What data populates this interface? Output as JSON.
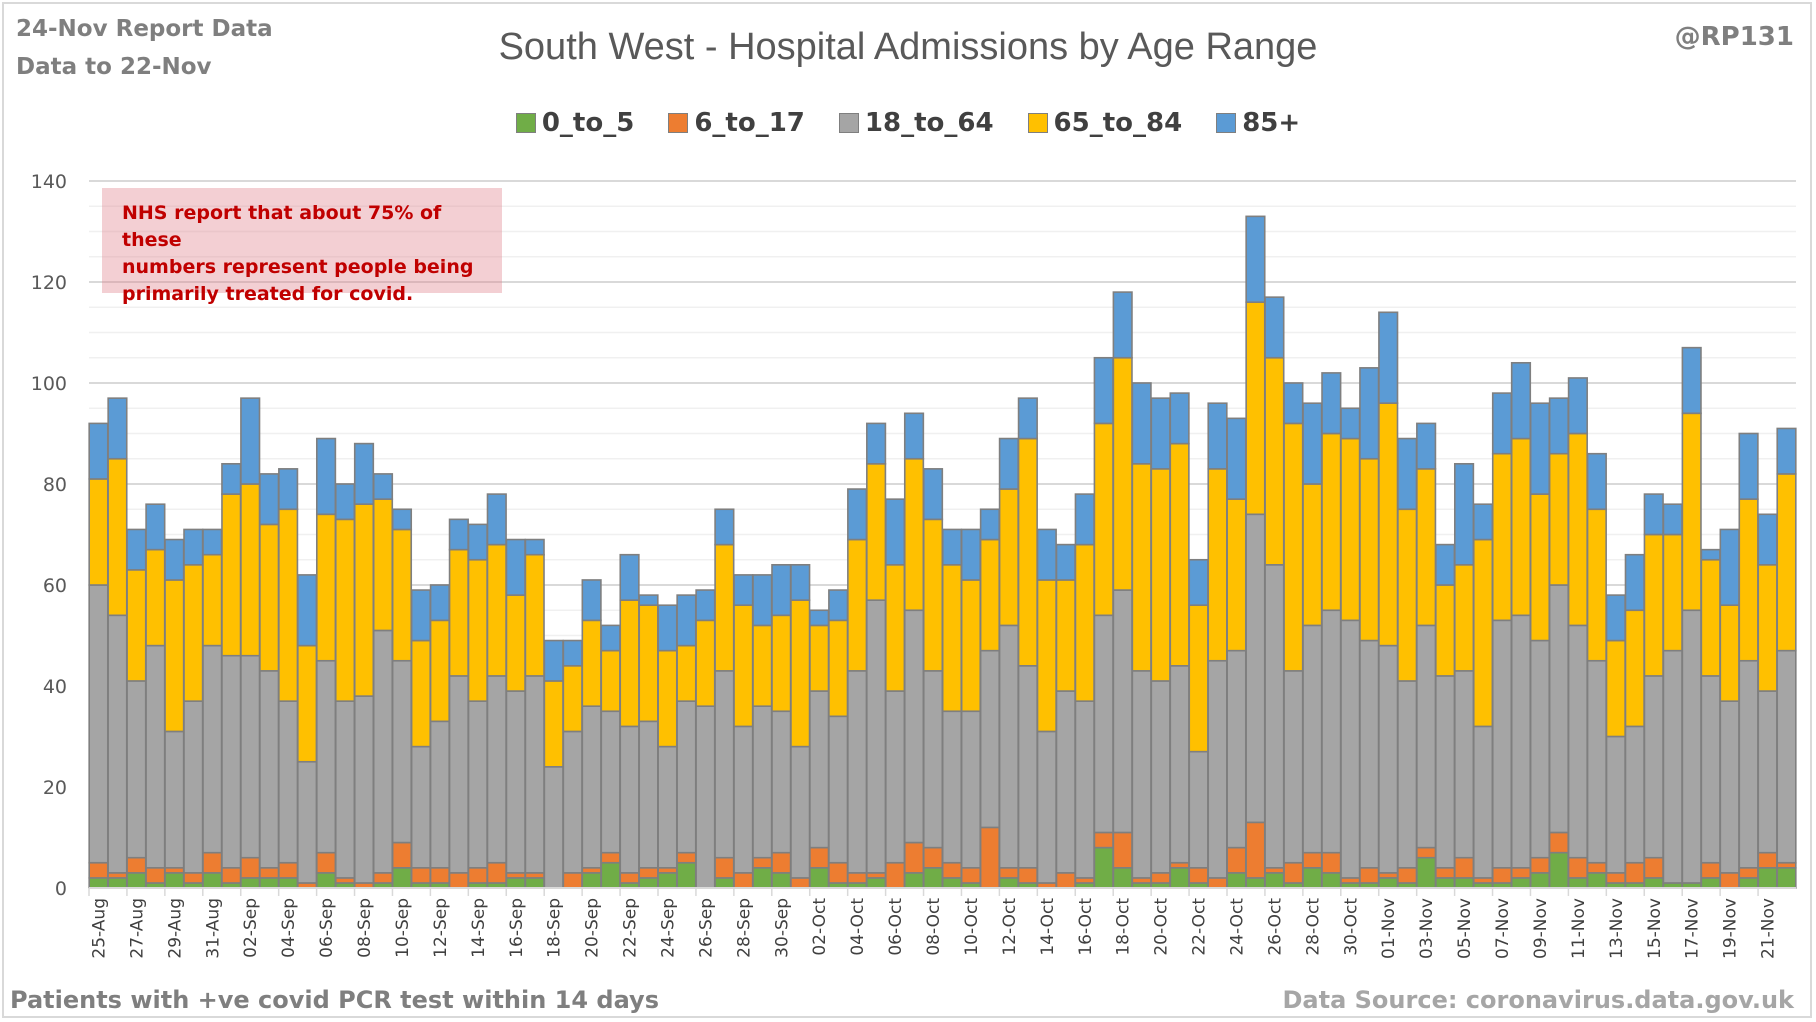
{
  "header": {
    "report_line1": "24-Nov Report Data",
    "report_line2": "Data to 22-Nov",
    "author": "@RP131"
  },
  "footer": {
    "left": "Patients with  +ve covid PCR test within 14 days",
    "right": "Data Source: coronavirus.data.gov.uk"
  },
  "annotation": {
    "line1": "NHS report that about 75% of these",
    "line2": "numbers represent people being",
    "line3": "primarily treated for covid."
  },
  "chart_data": {
    "type": "bar",
    "stacked": true,
    "title": "South West - Hospital Admissions by Age Range",
    "xlabel": "",
    "ylabel": "",
    "ylim": [
      0,
      140
    ],
    "yticks": [
      0,
      20,
      40,
      60,
      80,
      100,
      120,
      140
    ],
    "grid": true,
    "legend_position": "top",
    "x_tick_labels": [
      "25-Aug",
      "27-Aug",
      "29-Aug",
      "31-Aug",
      "02-Sep",
      "04-Sep",
      "06-Sep",
      "08-Sep",
      "10-Sep",
      "12-Sep",
      "14-Sep",
      "16-Sep",
      "18-Sep",
      "20-Sep",
      "22-Sep",
      "24-Sep",
      "26-Sep",
      "28-Sep",
      "30-Sep",
      "02-Oct",
      "04-Oct",
      "06-Oct",
      "08-Oct",
      "10-Oct",
      "12-Oct",
      "14-Oct",
      "16-Oct",
      "18-Oct",
      "20-Oct",
      "22-Oct",
      "24-Oct",
      "26-Oct",
      "28-Oct",
      "30-Oct",
      "01-Nov",
      "03-Nov",
      "05-Nov",
      "07-Nov",
      "09-Nov",
      "11-Nov",
      "13-Nov",
      "15-Nov",
      "17-Nov",
      "19-Nov",
      "21-Nov"
    ],
    "categories": [
      "25-Aug",
      "26-Aug",
      "27-Aug",
      "28-Aug",
      "29-Aug",
      "30-Aug",
      "31-Aug",
      "01-Sep",
      "02-Sep",
      "03-Sep",
      "04-Sep",
      "05-Sep",
      "06-Sep",
      "07-Sep",
      "08-Sep",
      "09-Sep",
      "10-Sep",
      "11-Sep",
      "12-Sep",
      "13-Sep",
      "14-Sep",
      "15-Sep",
      "16-Sep",
      "17-Sep",
      "18-Sep",
      "19-Sep",
      "20-Sep",
      "21-Sep",
      "22-Sep",
      "23-Sep",
      "24-Sep",
      "25-Sep",
      "26-Sep",
      "27-Sep",
      "28-Sep",
      "29-Sep",
      "30-Sep",
      "01-Oct",
      "02-Oct",
      "03-Oct",
      "04-Oct",
      "05-Oct",
      "06-Oct",
      "07-Oct",
      "08-Oct",
      "09-Oct",
      "10-Oct",
      "11-Oct",
      "12-Oct",
      "13-Oct",
      "14-Oct",
      "15-Oct",
      "16-Oct",
      "17-Oct",
      "18-Oct",
      "19-Oct",
      "20-Oct",
      "21-Oct",
      "22-Oct",
      "23-Oct",
      "24-Oct",
      "25-Oct",
      "26-Oct",
      "27-Oct",
      "28-Oct",
      "29-Oct",
      "30-Oct",
      "31-Oct",
      "01-Nov",
      "02-Nov",
      "03-Nov",
      "04-Nov",
      "05-Nov",
      "06-Nov",
      "07-Nov",
      "08-Nov",
      "09-Nov",
      "10-Nov",
      "11-Nov",
      "12-Nov",
      "13-Nov",
      "14-Nov",
      "15-Nov",
      "16-Nov",
      "17-Nov",
      "18-Nov",
      "19-Nov",
      "20-Nov",
      "21-Nov",
      "22-Nov"
    ],
    "series": [
      {
        "name": "0_to_5",
        "color": "#70ad47",
        "values": [
          2,
          2,
          3,
          1,
          3,
          1,
          3,
          1,
          2,
          2,
          2,
          0,
          3,
          1,
          0,
          1,
          4,
          1,
          1,
          0,
          1,
          1,
          2,
          2,
          0,
          0,
          3,
          5,
          1,
          2,
          3,
          5,
          0,
          2,
          0,
          4,
          3,
          0,
          4,
          1,
          1,
          2,
          0,
          3,
          4,
          2,
          1,
          0,
          2,
          1,
          0,
          0,
          1,
          8,
          4,
          1,
          1,
          4,
          1,
          0,
          3,
          2,
          3,
          1,
          4,
          3,
          1,
          1,
          2,
          1,
          6,
          2,
          2,
          1,
          1,
          2,
          3,
          7,
          2,
          3,
          1,
          1,
          2,
          1,
          1,
          2,
          0,
          2,
          4,
          4
        ]
      },
      {
        "name": "6_to_17",
        "color": "#ed7d31",
        "values": [
          3,
          1,
          3,
          3,
          1,
          2,
          4,
          3,
          4,
          2,
          3,
          1,
          4,
          1,
          1,
          2,
          5,
          3,
          3,
          3,
          3,
          4,
          1,
          1,
          0,
          3,
          1,
          2,
          2,
          2,
          1,
          2,
          0,
          4,
          3,
          2,
          4,
          2,
          4,
          4,
          2,
          1,
          5,
          6,
          4,
          3,
          3,
          12,
          2,
          3,
          1,
          3,
          1,
          3,
          7,
          1,
          2,
          1,
          3,
          2,
          5,
          11,
          1,
          4,
          3,
          4,
          1,
          3,
          1,
          3,
          2,
          2,
          4,
          1,
          3,
          2,
          3,
          4,
          4,
          2,
          2,
          4,
          4,
          0,
          0,
          3,
          3,
          2,
          3,
          1
        ]
      },
      {
        "name": "18_to_64",
        "color": "#a5a5a5",
        "values": [
          55,
          51,
          35,
          44,
          27,
          34,
          41,
          42,
          40,
          39,
          32,
          24,
          38,
          35,
          37,
          48,
          36,
          24,
          29,
          39,
          33,
          37,
          36,
          39,
          24,
          28,
          32,
          28,
          29,
          29,
          24,
          30,
          36,
          37,
          29,
          30,
          28,
          26,
          31,
          29,
          40,
          54,
          34,
          46,
          35,
          30,
          31,
          35,
          48,
          40,
          30,
          36,
          35,
          43,
          48,
          41,
          38,
          39,
          23,
          43,
          39,
          61,
          60,
          38,
          45,
          48,
          51,
          45,
          45,
          37,
          44,
          38,
          37,
          30,
          49,
          50,
          43,
          49,
          46,
          40,
          27,
          27,
          36,
          46,
          54,
          37,
          34,
          41,
          32,
          42
        ]
      },
      {
        "name": "65_to_84",
        "color": "#ffc000",
        "values": [
          21,
          31,
          22,
          19,
          30,
          27,
          18,
          32,
          34,
          29,
          38,
          23,
          29,
          36,
          38,
          26,
          26,
          21,
          20,
          25,
          28,
          26,
          19,
          24,
          17,
          13,
          17,
          12,
          25,
          23,
          19,
          11,
          17,
          25,
          24,
          16,
          19,
          29,
          13,
          19,
          26,
          27,
          25,
          30,
          30,
          29,
          26,
          22,
          27,
          45,
          30,
          22,
          31,
          38,
          46,
          41,
          42,
          44,
          29,
          38,
          30,
          42,
          41,
          49,
          28,
          35,
          36,
          36,
          48,
          34,
          31,
          18,
          21,
          37,
          33,
          35,
          29,
          26,
          38,
          30,
          19,
          23,
          28,
          23,
          39,
          23,
          19,
          32,
          25,
          35
        ]
      },
      {
        "name": "85+",
        "color": "#5b9bd5",
        "values": [
          11,
          12,
          8,
          9,
          8,
          7,
          5,
          6,
          17,
          10,
          8,
          14,
          15,
          7,
          12,
          5,
          4,
          10,
          7,
          6,
          7,
          10,
          11,
          3,
          8,
          5,
          8,
          5,
          9,
          2,
          9,
          10,
          6,
          7,
          6,
          10,
          10,
          7,
          3,
          6,
          10,
          8,
          13,
          9,
          10,
          7,
          10,
          6,
          10,
          8,
          10,
          7,
          10,
          13,
          13,
          16,
          14,
          10,
          9,
          13,
          16,
          17,
          12,
          8,
          16,
          12,
          6,
          18,
          18,
          14,
          9,
          8,
          20,
          7,
          12,
          15,
          18,
          11,
          11,
          11,
          9,
          11,
          8,
          6,
          13,
          2,
          15,
          13,
          10,
          9
        ]
      }
    ]
  }
}
